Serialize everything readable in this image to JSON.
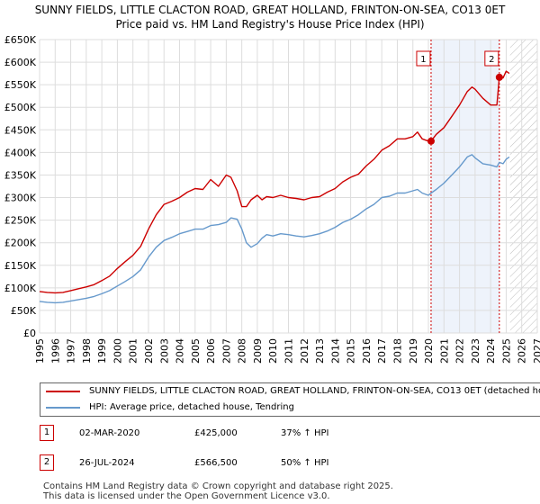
{
  "title_line1": "SUNNY FIELDS, LITTLE CLACTON ROAD, GREAT HOLLAND, FRINTON-ON-SEA, CO13 0ET",
  "title_line2": "Price paid vs. HM Land Registry's House Price Index (HPI)",
  "legend": {
    "property": "SUNNY FIELDS, LITTLE CLACTON ROAD, GREAT HOLLAND, FRINTON-ON-SEA, CO13 0ET (detached house)",
    "hpi": "HPI: Average price, detached house, Tendring"
  },
  "transactions": [
    {
      "num": "1",
      "date": "02-MAR-2020",
      "price": "£425,000",
      "hpi": "37% ↑ HPI"
    },
    {
      "num": "2",
      "date": "26-JUL-2024",
      "price": "£566,500",
      "hpi": "50% ↑ HPI"
    }
  ],
  "footer_line1": "Contains HM Land Registry data © Crown copyright and database right 2025.",
  "footer_line2": "This data is licensed under the Open Government Licence v3.0.",
  "colors": {
    "property": "#cc0000",
    "hpi": "#6699cc",
    "grid": "#dddddd",
    "shade": "#eef3fb"
  },
  "chart_data": {
    "type": "line",
    "title": "Price paid vs. HM Land Registry's House Price Index (HPI)",
    "xlim": [
      1995,
      2027
    ],
    "ylim": [
      0,
      650000
    ],
    "yticks": [
      0,
      50000,
      100000,
      150000,
      200000,
      250000,
      300000,
      350000,
      400000,
      450000,
      500000,
      550000,
      600000,
      650000
    ],
    "ytick_labels": [
      "£0",
      "£50K",
      "£100K",
      "£150K",
      "£200K",
      "£250K",
      "£300K",
      "£350K",
      "£400K",
      "£450K",
      "£500K",
      "£550K",
      "£600K",
      "£650K"
    ],
    "xticks": [
      "1995",
      "1996",
      "1997",
      "1998",
      "1999",
      "2000",
      "2001",
      "2002",
      "2003",
      "2004",
      "2005",
      "2006",
      "2007",
      "2008",
      "2009",
      "2010",
      "2011",
      "2012",
      "2013",
      "2014",
      "2015",
      "2016",
      "2017",
      "2018",
      "2019",
      "2020",
      "2021",
      "2022",
      "2023",
      "2024",
      "2025",
      "2026",
      "2027"
    ],
    "future_start": 2025.25,
    "series": [
      {
        "name": "SUNNY FIELDS, LITTLE CLACTON ROAD, GREAT HOLLAND, FRINTON-ON-SEA, CO13 0ET (detached house)",
        "x": [
          1995.0,
          1995.5,
          1996.0,
          1996.5,
          1997.0,
          1997.5,
          1998.0,
          1998.5,
          1999.0,
          1999.5,
          2000.0,
          2000.5,
          2001.0,
          2001.5,
          2002.0,
          2002.5,
          2003.0,
          2003.5,
          2004.0,
          2004.5,
          2005.0,
          2005.5,
          2006.0,
          2006.5,
          2007.0,
          2007.3,
          2007.7,
          2008.0,
          2008.3,
          2008.6,
          2009.0,
          2009.3,
          2009.6,
          2010.0,
          2010.5,
          2011.0,
          2011.5,
          2012.0,
          2012.5,
          2013.0,
          2013.5,
          2014.0,
          2014.5,
          2015.0,
          2015.5,
          2016.0,
          2016.5,
          2017.0,
          2017.5,
          2018.0,
          2018.5,
          2019.0,
          2019.3,
          2019.6,
          2020.0,
          2020.17,
          2020.5,
          2021.0,
          2021.5,
          2022.0,
          2022.5,
          2022.8,
          2023.0,
          2023.5,
          2024.0,
          2024.4,
          2024.56,
          2024.8,
          2025.0,
          2025.2
        ],
        "values": [
          92000,
          90000,
          89000,
          90000,
          94000,
          98000,
          102000,
          107000,
          116000,
          126000,
          143000,
          158000,
          172000,
          192000,
          230000,
          262000,
          285000,
          292000,
          300000,
          312000,
          320000,
          318000,
          340000,
          325000,
          350000,
          345000,
          315000,
          280000,
          280000,
          295000,
          305000,
          295000,
          302000,
          300000,
          305000,
          300000,
          298000,
          295000,
          300000,
          302000,
          312000,
          320000,
          335000,
          345000,
          352000,
          370000,
          385000,
          405000,
          415000,
          430000,
          430000,
          435000,
          445000,
          430000,
          425000,
          425000,
          440000,
          455000,
          480000,
          505000,
          535000,
          545000,
          540000,
          520000,
          505000,
          505000,
          566500,
          565000,
          580000,
          575000
        ]
      },
      {
        "name": "HPI: Average price, detached house, Tendring",
        "x": [
          1995.0,
          1995.5,
          1996.0,
          1996.5,
          1997.0,
          1997.5,
          1998.0,
          1998.5,
          1999.0,
          1999.5,
          2000.0,
          2000.5,
          2001.0,
          2001.5,
          2002.0,
          2002.5,
          2003.0,
          2003.5,
          2004.0,
          2004.5,
          2005.0,
          2005.5,
          2006.0,
          2006.5,
          2007.0,
          2007.3,
          2007.7,
          2008.0,
          2008.3,
          2008.6,
          2009.0,
          2009.3,
          2009.6,
          2010.0,
          2010.5,
          2011.0,
          2011.5,
          2012.0,
          2012.5,
          2013.0,
          2013.5,
          2014.0,
          2014.5,
          2015.0,
          2015.5,
          2016.0,
          2016.5,
          2017.0,
          2017.5,
          2018.0,
          2018.5,
          2019.0,
          2019.3,
          2019.6,
          2020.0,
          2020.17,
          2020.5,
          2021.0,
          2021.5,
          2022.0,
          2022.5,
          2022.8,
          2023.0,
          2023.5,
          2024.0,
          2024.4,
          2024.56,
          2024.8,
          2025.0,
          2025.2
        ],
        "values": [
          70000,
          68000,
          67000,
          68000,
          71000,
          74000,
          77000,
          81000,
          87000,
          94000,
          104000,
          114000,
          125000,
          140000,
          168000,
          190000,
          205000,
          212000,
          220000,
          225000,
          230000,
          230000,
          238000,
          240000,
          245000,
          255000,
          252000,
          230000,
          200000,
          190000,
          198000,
          210000,
          218000,
          215000,
          220000,
          218000,
          215000,
          213000,
          216000,
          220000,
          226000,
          234000,
          245000,
          252000,
          262000,
          275000,
          285000,
          300000,
          303000,
          310000,
          310000,
          315000,
          318000,
          310000,
          305000,
          310000,
          318000,
          332000,
          350000,
          368000,
          390000,
          395000,
          388000,
          375000,
          372000,
          368000,
          378000,
          375000,
          385000,
          390000
        ]
      }
    ],
    "annotations": [
      {
        "label": "1",
        "x": 2020.17,
        "y": 425000
      },
      {
        "label": "2",
        "x": 2024.56,
        "y": 566500
      }
    ]
  }
}
